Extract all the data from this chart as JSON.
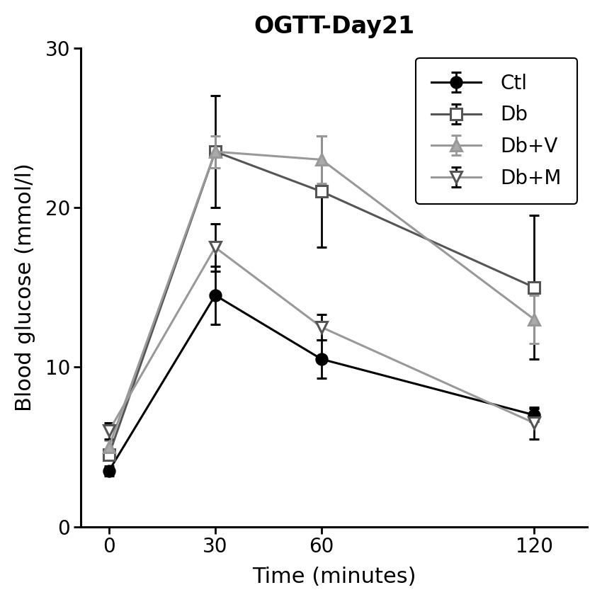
{
  "title": "OGTT-Day21",
  "xlabel": "Time (minutes)",
  "ylabel": "Blood glucose (mmol/l)",
  "x": [
    0,
    30,
    60,
    120
  ],
  "series": [
    {
      "label": "Ctl",
      "y": [
        3.5,
        14.5,
        10.5,
        7.0
      ],
      "yerr": [
        0.3,
        1.8,
        1.2,
        0.4
      ],
      "color": "#000000",
      "marker": "o",
      "markersize": 11,
      "markerfacecolor": "#000000",
      "markeredgecolor": "#000000",
      "linewidth": 2.2,
      "linestyle": "-",
      "ecolor": "#000000"
    },
    {
      "label": "Db",
      "y": [
        4.5,
        23.5,
        21.0,
        15.0
      ],
      "yerr": [
        0.3,
        3.5,
        3.5,
        4.5
      ],
      "color": "#555555",
      "marker": "s",
      "markersize": 11,
      "markerfacecolor": "#ffffff",
      "markeredgecolor": "#555555",
      "linewidth": 2.2,
      "linestyle": "-",
      "ecolor": "#000000"
    },
    {
      "label": "Db+V",
      "y": [
        5.0,
        23.5,
        23.0,
        13.0
      ],
      "yerr": [
        0.4,
        1.0,
        1.5,
        1.5
      ],
      "color": "#999999",
      "marker": "^",
      "markersize": 11,
      "markerfacecolor": "#aaaaaa",
      "markeredgecolor": "#999999",
      "linewidth": 2.2,
      "linestyle": "-",
      "ecolor": "#999999"
    },
    {
      "label": "Db+M",
      "y": [
        6.0,
        17.5,
        12.5,
        6.5
      ],
      "yerr": [
        0.5,
        1.5,
        0.8,
        1.0
      ],
      "color": "#999999",
      "marker": "v",
      "markersize": 11,
      "markerfacecolor": "#ffffff",
      "markeredgecolor": "#555555",
      "linewidth": 2.2,
      "linestyle": "-",
      "ecolor": "#000000"
    }
  ],
  "ylim": [
    0,
    30
  ],
  "yticks": [
    0,
    10,
    20,
    30
  ],
  "xticks": [
    0,
    30,
    60,
    120
  ],
  "xlim": [
    -8,
    135
  ],
  "legend_loc": "upper right",
  "title_fontsize": 24,
  "axis_label_fontsize": 22,
  "tick_fontsize": 20,
  "legend_fontsize": 20,
  "background_color": "#ffffff",
  "figsize": [
    8.5,
    8.5
  ],
  "dpi": 100
}
